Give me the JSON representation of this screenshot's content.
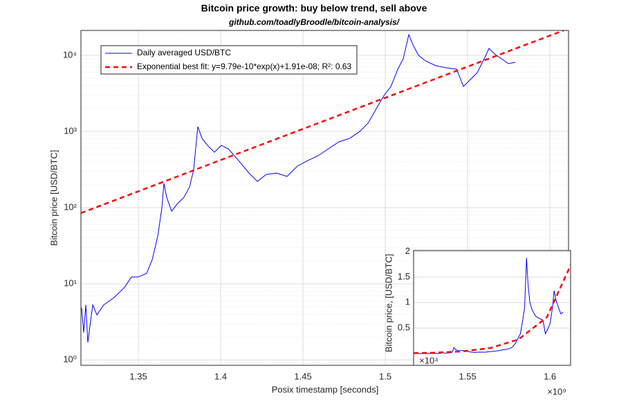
{
  "chart_data": {
    "type": "line",
    "title": "Bitcoin price growth: buy below trend, sell above",
    "subtitle": "github.com/toadlyBroodle/bitcoin-analysis/",
    "xlabel": "Posix timestamp [seconds]",
    "ylabel": "Bitcoin price [USD/BTC]",
    "x_multiplier_label": "×10⁹",
    "xlim": [
      1.3151,
      1.6113
    ],
    "xticks": [
      1.35,
      1.4,
      1.45,
      1.5,
      1.55,
      1.6
    ],
    "ylim": [
      0.85,
      21240
    ],
    "yticks": [
      {
        "value": 1,
        "label": "10⁰"
      },
      {
        "value": 10,
        "label": "10¹"
      },
      {
        "value": 100,
        "label": "10²"
      },
      {
        "value": 1000,
        "label": "10³"
      },
      {
        "value": 10000,
        "label": "10⁴"
      }
    ],
    "log_y": true,
    "grid": true,
    "legend": "northwest",
    "series": [
      {
        "name": "Daily averaged USD/BTC",
        "color": "#0000ff",
        "style": "solid",
        "x": [
          1.3155,
          1.3168,
          1.3181,
          1.3193,
          1.3206,
          1.3223,
          1.3248,
          1.329,
          1.3353,
          1.3416,
          1.3458,
          1.35,
          1.355,
          1.3584,
          1.3618,
          1.3643,
          1.3655,
          1.3672,
          1.3702,
          1.3735,
          1.3777,
          1.3811,
          1.3836,
          1.3861,
          1.3887,
          1.392,
          1.3962,
          1.4004,
          1.4046,
          1.4109,
          1.4172,
          1.4223,
          1.4277,
          1.434,
          1.4403,
          1.4466,
          1.4529,
          1.4592,
          1.4655,
          1.4718,
          1.4782,
          1.4845,
          1.4895,
          1.495,
          1.4992,
          1.5034,
          1.5076,
          1.5109,
          1.5143,
          1.5168,
          1.5202,
          1.5244,
          1.5307,
          1.537,
          1.5433,
          1.5475,
          1.5517,
          1.5559,
          1.5601,
          1.563,
          1.5664,
          1.5706,
          1.5748,
          1.579
        ],
        "values": [
          4.8,
          2.3,
          5.3,
          1.7,
          2.8,
          5.3,
          3.9,
          5.3,
          6.6,
          9.0,
          12.3,
          12.3,
          13.7,
          20.8,
          43,
          100,
          208,
          137,
          90,
          111,
          137,
          187,
          316,
          1158,
          811,
          658,
          533,
          658,
          593,
          415,
          285,
          221,
          273,
          285,
          257,
          351,
          415,
          481,
          593,
          731,
          811,
          1000,
          1285,
          2080,
          2970,
          3900,
          6580,
          9010,
          18750,
          13680,
          10000,
          8460,
          7310,
          6860,
          6580,
          3900,
          4810,
          5930,
          9010,
          12330,
          10420,
          9010,
          7780,
          8110
        ]
      },
      {
        "name": "Exponential best fit: y=9.79e-10*exp(x)+1.91e-08; R²: 0.63",
        "color": "#ff0000",
        "style": "dashed",
        "x": [
          1.3151,
          1.35,
          1.4,
          1.45,
          1.5,
          1.55,
          1.6084
        ],
        "values": [
          85,
          164,
          422,
          1081,
          2771,
          7104,
          21240
        ]
      }
    ],
    "inset": {
      "ylabel": "Bitcoin price, [USD/BTC]",
      "y_multiplier_label": "×10⁴",
      "y_factor": 10000,
      "xlim": [
        1.3151,
        1.592
      ],
      "ylim": [
        -0.23,
        2.02
      ],
      "yticks": [
        0.5,
        1,
        1.5,
        2
      ]
    }
  }
}
